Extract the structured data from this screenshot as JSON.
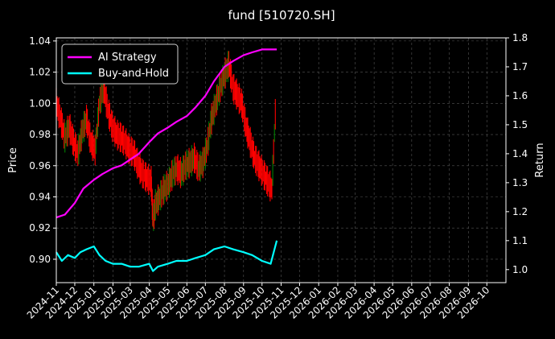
{
  "chart_data": {
    "type": "line",
    "title": "fund [510720.SH]",
    "xlabel": "",
    "ylabel": "Price",
    "ylabel_right": "Return",
    "x_ticks": [
      "2024-11",
      "2024-12",
      "2025-01",
      "2025-02",
      "2025-03",
      "2025-04",
      "2025-05",
      "2025-06",
      "2025-07",
      "2025-08",
      "2025-09",
      "2025-10",
      "2025-11",
      "2025-12",
      "2026-01",
      "2026-02",
      "2026-03",
      "2026-04",
      "2026-05",
      "2026-06",
      "2026-07",
      "2026-08",
      "2026-09",
      "2026-10"
    ],
    "xlim": [
      "2024-11-01",
      "2026-11-01"
    ],
    "ylim_left": [
      0.885,
      1.042
    ],
    "ylim_right": [
      0.955,
      1.8
    ],
    "y_ticks_left": [
      "0.90",
      "0.92",
      "0.94",
      "0.96",
      "0.98",
      "1.00",
      "1.02",
      "1.04"
    ],
    "y_ticks_right": [
      "1.0",
      "1.1",
      "1.2",
      "1.3",
      "1.4",
      "1.5",
      "1.6",
      "1.7",
      "1.8"
    ],
    "grid": true,
    "legend_position": "upper-left",
    "colors": {
      "ai": "#ff00ff",
      "bh": "#00ffff",
      "up": "#008000",
      "down": "#ff0000",
      "grid": "#555555",
      "bg": "#000000"
    },
    "price_series": {
      "name": "",
      "x": [
        "2024-11-01",
        "2024-11-08",
        "2024-11-15",
        "2024-11-22",
        "2024-11-29",
        "2024-12-06",
        "2024-12-13",
        "2024-12-20",
        "2024-12-27",
        "2025-01-03",
        "2025-01-10",
        "2025-01-17",
        "2025-01-24",
        "2025-01-31",
        "2025-02-07",
        "2025-02-14",
        "2025-02-21",
        "2025-02-28",
        "2025-03-07",
        "2025-03-14",
        "2025-03-21",
        "2025-03-28",
        "2025-04-04",
        "2025-04-07",
        "2025-04-11",
        "2025-04-18",
        "2025-04-25",
        "2025-05-02",
        "2025-05-09",
        "2025-05-16",
        "2025-05-23",
        "2025-05-30",
        "2025-06-06",
        "2025-06-13",
        "2025-06-20",
        "2025-06-27",
        "2025-07-04",
        "2025-07-11",
        "2025-07-18",
        "2025-07-25",
        "2025-08-01",
        "2025-08-08",
        "2025-08-15",
        "2025-08-22",
        "2025-08-29",
        "2025-09-05",
        "2025-09-12",
        "2025-09-19",
        "2025-09-26",
        "2025-10-03",
        "2025-10-10",
        "2025-10-17",
        "2025-10-24"
      ],
      "y": [
        1.0,
        0.99,
        0.978,
        0.985,
        0.975,
        0.968,
        0.982,
        0.99,
        0.975,
        0.97,
        1.0,
        1.01,
        0.995,
        0.985,
        0.98,
        0.978,
        0.975,
        0.97,
        0.968,
        0.96,
        0.955,
        0.952,
        0.95,
        0.925,
        0.935,
        0.94,
        0.945,
        0.948,
        0.955,
        0.958,
        0.955,
        0.96,
        0.962,
        0.965,
        0.958,
        0.962,
        0.972,
        0.99,
        1.0,
        1.01,
        1.018,
        1.025,
        1.01,
        1.005,
        1.0,
        0.985,
        0.975,
        0.965,
        0.96,
        0.955,
        0.95,
        0.945,
        1.005
      ]
    },
    "series": [
      {
        "name": "AI Strategy",
        "x": [
          "2024-11-01",
          "2024-11-15",
          "2024-12-01",
          "2024-12-15",
          "2025-01-01",
          "2025-01-15",
          "2025-02-01",
          "2025-02-15",
          "2025-03-01",
          "2025-03-15",
          "2025-04-01",
          "2025-04-15",
          "2025-05-01",
          "2025-05-15",
          "2025-06-01",
          "2025-06-15",
          "2025-07-01",
          "2025-07-15",
          "2025-08-01",
          "2025-08-15",
          "2025-09-01",
          "2025-09-15",
          "2025-10-01",
          "2025-10-15",
          "2025-10-25"
        ],
        "values": [
          1.18,
          1.19,
          1.23,
          1.28,
          1.31,
          1.33,
          1.35,
          1.36,
          1.38,
          1.4,
          1.44,
          1.47,
          1.49,
          1.51,
          1.53,
          1.56,
          1.6,
          1.65,
          1.7,
          1.72,
          1.74,
          1.75,
          1.76,
          1.76,
          1.76
        ]
      },
      {
        "name": "Buy-and-Hold",
        "x": [
          "2024-11-01",
          "2024-11-10",
          "2024-11-20",
          "2024-12-01",
          "2024-12-10",
          "2024-12-20",
          "2025-01-01",
          "2025-01-10",
          "2025-01-20",
          "2025-02-01",
          "2025-02-15",
          "2025-03-01",
          "2025-03-15",
          "2025-04-01",
          "2025-04-07",
          "2025-04-15",
          "2025-05-01",
          "2025-05-15",
          "2025-06-01",
          "2025-06-15",
          "2025-07-01",
          "2025-07-15",
          "2025-08-01",
          "2025-08-15",
          "2025-09-01",
          "2025-09-15",
          "2025-10-01",
          "2025-10-15",
          "2025-10-25"
        ],
        "values": [
          1.06,
          1.03,
          1.05,
          1.04,
          1.06,
          1.07,
          1.08,
          1.05,
          1.03,
          1.02,
          1.02,
          1.01,
          1.01,
          1.02,
          0.995,
          1.01,
          1.02,
          1.03,
          1.03,
          1.04,
          1.05,
          1.07,
          1.08,
          1.07,
          1.06,
          1.05,
          1.03,
          1.02,
          1.1
        ]
      }
    ]
  }
}
